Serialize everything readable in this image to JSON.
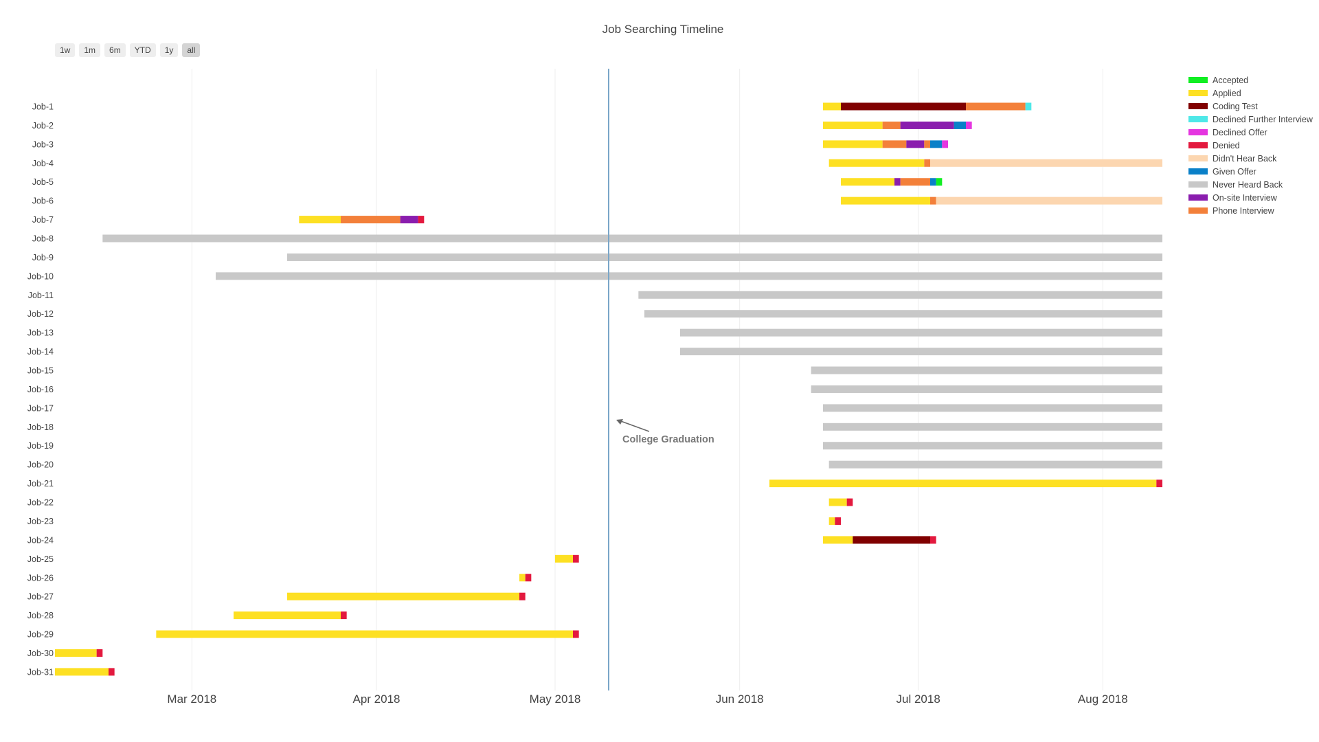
{
  "chart_data": {
    "type": "gantt",
    "title": "Job Searching Timeline",
    "x_range": [
      "2018-02-06",
      "2018-08-11"
    ],
    "x_ticks": [
      {
        "date": "2018-03-01",
        "label": "Mar 2018"
      },
      {
        "date": "2018-04-01",
        "label": "Apr 2018"
      },
      {
        "date": "2018-05-01",
        "label": "May 2018"
      },
      {
        "date": "2018-06-01",
        "label": "Jun 2018"
      },
      {
        "date": "2018-07-01",
        "label": "Jul 2018"
      },
      {
        "date": "2018-08-01",
        "label": "Aug 2018"
      }
    ],
    "grid": true,
    "legend_position": "right",
    "range_buttons": [
      "1w",
      "1m",
      "6m",
      "YTD",
      "1y",
      "all"
    ],
    "active_range": "all",
    "colors": {
      "Accepted": "#11ee22",
      "Applied": "#fde023",
      "Coding Test": "#800000",
      "Declined Further Interview": "#4ee8e8",
      "Declined Offer": "#e535e0",
      "Denied": "#e3193e",
      "Didn't Hear Back": "#fcd6b0",
      "Given Offer": "#0a80c8",
      "Never Heard Back": "#c8c8c8",
      "On-site Interview": "#8a1dae",
      "Phone Interview": "#f3803a"
    },
    "legend": [
      "Accepted",
      "Applied",
      "Coding Test",
      "Declined Further Interview",
      "Declined Offer",
      "Denied",
      "Didn't Hear Back",
      "Given Offer",
      "Never Heard Back",
      "On-site Interview",
      "Phone Interview"
    ],
    "annotation": {
      "text": "College Graduation",
      "date": "2018-05-10"
    },
    "jobs": [
      {
        "label": "Job-1",
        "segments": [
          [
            "Applied",
            "2018-06-15",
            "2018-06-18"
          ],
          [
            "Coding Test",
            "2018-06-18",
            "2018-07-09"
          ],
          [
            "Phone Interview",
            "2018-07-09",
            "2018-07-19"
          ],
          [
            "Declined Further Interview",
            "2018-07-19",
            "2018-07-20"
          ]
        ]
      },
      {
        "label": "Job-2",
        "segments": [
          [
            "Applied",
            "2018-06-15",
            "2018-06-25"
          ],
          [
            "Phone Interview",
            "2018-06-25",
            "2018-06-28"
          ],
          [
            "On-site Interview",
            "2018-06-28",
            "2018-07-07"
          ],
          [
            "Given Offer",
            "2018-07-07",
            "2018-07-09"
          ],
          [
            "Declined Offer",
            "2018-07-09",
            "2018-07-10"
          ]
        ]
      },
      {
        "label": "Job-3",
        "segments": [
          [
            "Applied",
            "2018-06-15",
            "2018-06-25"
          ],
          [
            "Phone Interview",
            "2018-06-25",
            "2018-06-29"
          ],
          [
            "On-site Interview",
            "2018-06-29",
            "2018-07-02"
          ],
          [
            "Phone Interview",
            "2018-07-02",
            "2018-07-03"
          ],
          [
            "Given Offer",
            "2018-07-03",
            "2018-07-05"
          ],
          [
            "Declined Offer",
            "2018-07-05",
            "2018-07-06"
          ]
        ]
      },
      {
        "label": "Job-4",
        "segments": [
          [
            "Applied",
            "2018-06-16",
            "2018-07-02"
          ],
          [
            "Phone Interview",
            "2018-07-02",
            "2018-07-03"
          ],
          [
            "Didn't Hear Back",
            "2018-07-03",
            "2018-08-11"
          ]
        ]
      },
      {
        "label": "Job-5",
        "segments": [
          [
            "Applied",
            "2018-06-18",
            "2018-06-27"
          ],
          [
            "On-site Interview",
            "2018-06-27",
            "2018-06-28"
          ],
          [
            "Phone Interview",
            "2018-06-28",
            "2018-07-03"
          ],
          [
            "Given Offer",
            "2018-07-03",
            "2018-07-04"
          ],
          [
            "Accepted",
            "2018-07-04",
            "2018-07-05"
          ]
        ]
      },
      {
        "label": "Job-6",
        "segments": [
          [
            "Applied",
            "2018-06-18",
            "2018-07-03"
          ],
          [
            "Phone Interview",
            "2018-07-03",
            "2018-07-04"
          ],
          [
            "Didn't Hear Back",
            "2018-07-04",
            "2018-08-11"
          ]
        ]
      },
      {
        "label": "Job-7",
        "segments": [
          [
            "Applied",
            "2018-03-19",
            "2018-03-26"
          ],
          [
            "Phone Interview",
            "2018-03-26",
            "2018-04-05"
          ],
          [
            "On-site Interview",
            "2018-04-05",
            "2018-04-08"
          ],
          [
            "Denied",
            "2018-04-08",
            "2018-04-09"
          ]
        ]
      },
      {
        "label": "Job-8",
        "segments": [
          [
            "Never Heard Back",
            "2018-02-14",
            "2018-08-11"
          ]
        ]
      },
      {
        "label": "Job-9",
        "segments": [
          [
            "Never Heard Back",
            "2018-03-17",
            "2018-08-11"
          ]
        ]
      },
      {
        "label": "Job-10",
        "segments": [
          [
            "Never Heard Back",
            "2018-03-05",
            "2018-08-11"
          ]
        ]
      },
      {
        "label": "Job-11",
        "segments": [
          [
            "Never Heard Back",
            "2018-05-15",
            "2018-08-11"
          ]
        ]
      },
      {
        "label": "Job-12",
        "segments": [
          [
            "Never Heard Back",
            "2018-05-16",
            "2018-08-11"
          ]
        ]
      },
      {
        "label": "Job-13",
        "segments": [
          [
            "Never Heard Back",
            "2018-05-22",
            "2018-08-11"
          ]
        ]
      },
      {
        "label": "Job-14",
        "segments": [
          [
            "Never Heard Back",
            "2018-05-22",
            "2018-08-11"
          ]
        ]
      },
      {
        "label": "Job-15",
        "segments": [
          [
            "Never Heard Back",
            "2018-06-13",
            "2018-08-11"
          ]
        ]
      },
      {
        "label": "Job-16",
        "segments": [
          [
            "Never Heard Back",
            "2018-06-13",
            "2018-08-11"
          ]
        ]
      },
      {
        "label": "Job-17",
        "segments": [
          [
            "Never Heard Back",
            "2018-06-15",
            "2018-08-11"
          ]
        ]
      },
      {
        "label": "Job-18",
        "segments": [
          [
            "Never Heard Back",
            "2018-06-15",
            "2018-08-11"
          ]
        ]
      },
      {
        "label": "Job-19",
        "segments": [
          [
            "Never Heard Back",
            "2018-06-15",
            "2018-08-11"
          ]
        ]
      },
      {
        "label": "Job-20",
        "segments": [
          [
            "Never Heard Back",
            "2018-06-16",
            "2018-08-11"
          ]
        ]
      },
      {
        "label": "Job-21",
        "segments": [
          [
            "Applied",
            "2018-06-06",
            "2018-08-10"
          ],
          [
            "Denied",
            "2018-08-10",
            "2018-08-11"
          ]
        ]
      },
      {
        "label": "Job-22",
        "segments": [
          [
            "Applied",
            "2018-06-16",
            "2018-06-19"
          ],
          [
            "Denied",
            "2018-06-19",
            "2018-06-20"
          ]
        ]
      },
      {
        "label": "Job-23",
        "segments": [
          [
            "Applied",
            "2018-06-16",
            "2018-06-17"
          ],
          [
            "Denied",
            "2018-06-17",
            "2018-06-18"
          ]
        ]
      },
      {
        "label": "Job-24",
        "segments": [
          [
            "Applied",
            "2018-06-15",
            "2018-06-20"
          ],
          [
            "Coding Test",
            "2018-06-20",
            "2018-07-03"
          ],
          [
            "Denied",
            "2018-07-03",
            "2018-07-04"
          ]
        ]
      },
      {
        "label": "Job-25",
        "segments": [
          [
            "Applied",
            "2018-05-01",
            "2018-05-04"
          ],
          [
            "Denied",
            "2018-05-04",
            "2018-05-05"
          ]
        ]
      },
      {
        "label": "Job-26",
        "segments": [
          [
            "Applied",
            "2018-04-25",
            "2018-04-26"
          ],
          [
            "Denied",
            "2018-04-26",
            "2018-04-27"
          ]
        ]
      },
      {
        "label": "Job-27",
        "segments": [
          [
            "Applied",
            "2018-03-17",
            "2018-04-25"
          ],
          [
            "Denied",
            "2018-04-25",
            "2018-04-26"
          ]
        ]
      },
      {
        "label": "Job-28",
        "segments": [
          [
            "Applied",
            "2018-03-08",
            "2018-03-26"
          ],
          [
            "Denied",
            "2018-03-26",
            "2018-03-27"
          ]
        ]
      },
      {
        "label": "Job-29",
        "segments": [
          [
            "Applied",
            "2018-02-23",
            "2018-05-04"
          ],
          [
            "Denied",
            "2018-05-04",
            "2018-05-05"
          ]
        ]
      },
      {
        "label": "Job-30",
        "segments": [
          [
            "Applied",
            "2018-02-06",
            "2018-02-13"
          ],
          [
            "Denied",
            "2018-02-13",
            "2018-02-14"
          ]
        ]
      },
      {
        "label": "Job-31",
        "segments": [
          [
            "Applied",
            "2018-02-06",
            "2018-02-15"
          ],
          [
            "Denied",
            "2018-02-15",
            "2018-02-16"
          ]
        ]
      }
    ]
  }
}
